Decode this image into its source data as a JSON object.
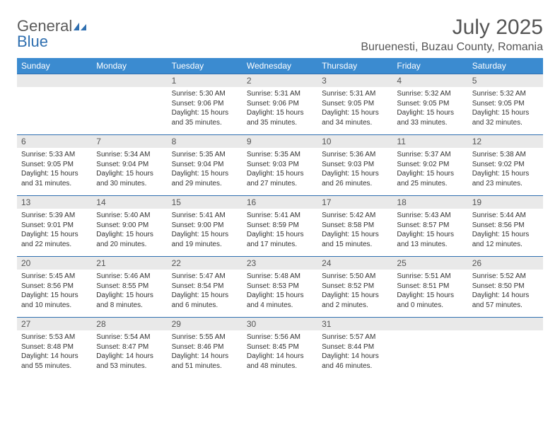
{
  "logo": {
    "text1": "General",
    "text2": "Blue"
  },
  "header": {
    "title": "July 2025",
    "location": "Buruenesti, Buzau County, Romania"
  },
  "weekdays": [
    "Sunday",
    "Monday",
    "Tuesday",
    "Wednesday",
    "Thursday",
    "Friday",
    "Saturday"
  ],
  "colors": {
    "headerBg": "#3b8bd0",
    "headerText": "#ffffff",
    "dayStripBg": "#e9e9e9",
    "dayStripBorder": "#2f6fb0",
    "bodyText": "#333333",
    "titleText": "#555555"
  },
  "weeks": [
    [
      null,
      null,
      {
        "n": "1",
        "sunrise": "Sunrise: 5:30 AM",
        "sunset": "Sunset: 9:06 PM",
        "daylight": "Daylight: 15 hours and 35 minutes."
      },
      {
        "n": "2",
        "sunrise": "Sunrise: 5:31 AM",
        "sunset": "Sunset: 9:06 PM",
        "daylight": "Daylight: 15 hours and 35 minutes."
      },
      {
        "n": "3",
        "sunrise": "Sunrise: 5:31 AM",
        "sunset": "Sunset: 9:05 PM",
        "daylight": "Daylight: 15 hours and 34 minutes."
      },
      {
        "n": "4",
        "sunrise": "Sunrise: 5:32 AM",
        "sunset": "Sunset: 9:05 PM",
        "daylight": "Daylight: 15 hours and 33 minutes."
      },
      {
        "n": "5",
        "sunrise": "Sunrise: 5:32 AM",
        "sunset": "Sunset: 9:05 PM",
        "daylight": "Daylight: 15 hours and 32 minutes."
      }
    ],
    [
      {
        "n": "6",
        "sunrise": "Sunrise: 5:33 AM",
        "sunset": "Sunset: 9:05 PM",
        "daylight": "Daylight: 15 hours and 31 minutes."
      },
      {
        "n": "7",
        "sunrise": "Sunrise: 5:34 AM",
        "sunset": "Sunset: 9:04 PM",
        "daylight": "Daylight: 15 hours and 30 minutes."
      },
      {
        "n": "8",
        "sunrise": "Sunrise: 5:35 AM",
        "sunset": "Sunset: 9:04 PM",
        "daylight": "Daylight: 15 hours and 29 minutes."
      },
      {
        "n": "9",
        "sunrise": "Sunrise: 5:35 AM",
        "sunset": "Sunset: 9:03 PM",
        "daylight": "Daylight: 15 hours and 27 minutes."
      },
      {
        "n": "10",
        "sunrise": "Sunrise: 5:36 AM",
        "sunset": "Sunset: 9:03 PM",
        "daylight": "Daylight: 15 hours and 26 minutes."
      },
      {
        "n": "11",
        "sunrise": "Sunrise: 5:37 AM",
        "sunset": "Sunset: 9:02 PM",
        "daylight": "Daylight: 15 hours and 25 minutes."
      },
      {
        "n": "12",
        "sunrise": "Sunrise: 5:38 AM",
        "sunset": "Sunset: 9:02 PM",
        "daylight": "Daylight: 15 hours and 23 minutes."
      }
    ],
    [
      {
        "n": "13",
        "sunrise": "Sunrise: 5:39 AM",
        "sunset": "Sunset: 9:01 PM",
        "daylight": "Daylight: 15 hours and 22 minutes."
      },
      {
        "n": "14",
        "sunrise": "Sunrise: 5:40 AM",
        "sunset": "Sunset: 9:00 PM",
        "daylight": "Daylight: 15 hours and 20 minutes."
      },
      {
        "n": "15",
        "sunrise": "Sunrise: 5:41 AM",
        "sunset": "Sunset: 9:00 PM",
        "daylight": "Daylight: 15 hours and 19 minutes."
      },
      {
        "n": "16",
        "sunrise": "Sunrise: 5:41 AM",
        "sunset": "Sunset: 8:59 PM",
        "daylight": "Daylight: 15 hours and 17 minutes."
      },
      {
        "n": "17",
        "sunrise": "Sunrise: 5:42 AM",
        "sunset": "Sunset: 8:58 PM",
        "daylight": "Daylight: 15 hours and 15 minutes."
      },
      {
        "n": "18",
        "sunrise": "Sunrise: 5:43 AM",
        "sunset": "Sunset: 8:57 PM",
        "daylight": "Daylight: 15 hours and 13 minutes."
      },
      {
        "n": "19",
        "sunrise": "Sunrise: 5:44 AM",
        "sunset": "Sunset: 8:56 PM",
        "daylight": "Daylight: 15 hours and 12 minutes."
      }
    ],
    [
      {
        "n": "20",
        "sunrise": "Sunrise: 5:45 AM",
        "sunset": "Sunset: 8:56 PM",
        "daylight": "Daylight: 15 hours and 10 minutes."
      },
      {
        "n": "21",
        "sunrise": "Sunrise: 5:46 AM",
        "sunset": "Sunset: 8:55 PM",
        "daylight": "Daylight: 15 hours and 8 minutes."
      },
      {
        "n": "22",
        "sunrise": "Sunrise: 5:47 AM",
        "sunset": "Sunset: 8:54 PM",
        "daylight": "Daylight: 15 hours and 6 minutes."
      },
      {
        "n": "23",
        "sunrise": "Sunrise: 5:48 AM",
        "sunset": "Sunset: 8:53 PM",
        "daylight": "Daylight: 15 hours and 4 minutes."
      },
      {
        "n": "24",
        "sunrise": "Sunrise: 5:50 AM",
        "sunset": "Sunset: 8:52 PM",
        "daylight": "Daylight: 15 hours and 2 minutes."
      },
      {
        "n": "25",
        "sunrise": "Sunrise: 5:51 AM",
        "sunset": "Sunset: 8:51 PM",
        "daylight": "Daylight: 15 hours and 0 minutes."
      },
      {
        "n": "26",
        "sunrise": "Sunrise: 5:52 AM",
        "sunset": "Sunset: 8:50 PM",
        "daylight": "Daylight: 14 hours and 57 minutes."
      }
    ],
    [
      {
        "n": "27",
        "sunrise": "Sunrise: 5:53 AM",
        "sunset": "Sunset: 8:48 PM",
        "daylight": "Daylight: 14 hours and 55 minutes."
      },
      {
        "n": "28",
        "sunrise": "Sunrise: 5:54 AM",
        "sunset": "Sunset: 8:47 PM",
        "daylight": "Daylight: 14 hours and 53 minutes."
      },
      {
        "n": "29",
        "sunrise": "Sunrise: 5:55 AM",
        "sunset": "Sunset: 8:46 PM",
        "daylight": "Daylight: 14 hours and 51 minutes."
      },
      {
        "n": "30",
        "sunrise": "Sunrise: 5:56 AM",
        "sunset": "Sunset: 8:45 PM",
        "daylight": "Daylight: 14 hours and 48 minutes."
      },
      {
        "n": "31",
        "sunrise": "Sunrise: 5:57 AM",
        "sunset": "Sunset: 8:44 PM",
        "daylight": "Daylight: 14 hours and 46 minutes."
      },
      null,
      null
    ]
  ]
}
